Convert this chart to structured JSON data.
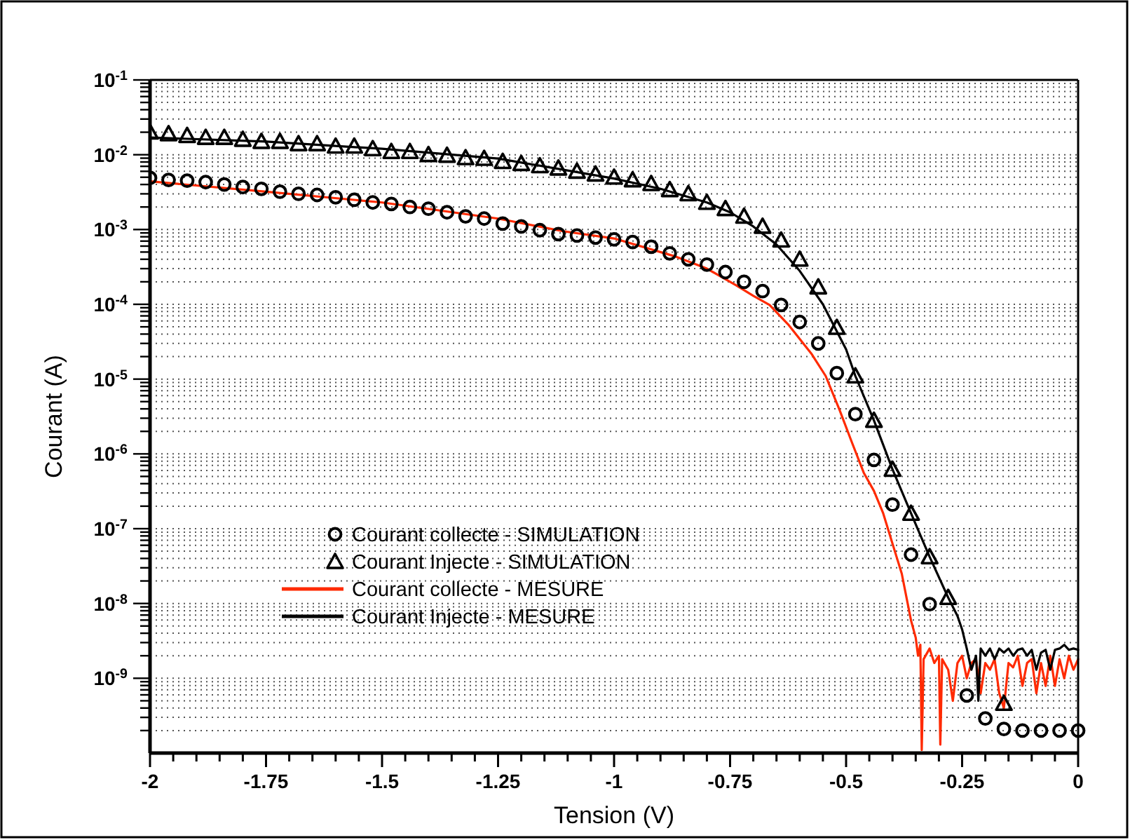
{
  "chart_data": {
    "type": "scatter",
    "xlabel": "Tension (V)",
    "ylabel": "Courant (A)",
    "log": "y",
    "grid": "y",
    "legend": "bottom left",
    "xlim": [
      -2,
      0
    ],
    "ylim": [
      1e-10,
      0.1
    ],
    "xticks": [
      -2,
      {
        "value": -1.95,
        "label": null
      },
      {
        "value": -1.9,
        "label": null
      },
      {
        "value": -1.85,
        "label": null
      },
      {
        "value": -1.8,
        "label": null
      },
      -1.75,
      {
        "value": -1.7,
        "label": null
      },
      {
        "value": -1.65,
        "label": null
      },
      {
        "value": -1.6,
        "label": null
      },
      {
        "value": -1.55,
        "label": null
      },
      -1.5,
      {
        "value": -1.45,
        "label": null
      },
      {
        "value": -1.4,
        "label": null
      },
      {
        "value": -1.35,
        "label": null
      },
      {
        "value": -1.3,
        "label": null
      },
      -1.25,
      {
        "value": -1.2,
        "label": null
      },
      {
        "value": -1.15,
        "label": null
      },
      {
        "value": -1.1,
        "label": null
      },
      {
        "value": -1.05,
        "label": null
      },
      -1,
      {
        "value": -0.95,
        "label": null
      },
      {
        "value": -0.9,
        "label": null
      },
      {
        "value": -0.85,
        "label": null
      },
      {
        "value": -0.8,
        "label": null
      },
      -0.75,
      {
        "value": -0.7,
        "label": null
      },
      {
        "value": -0.65,
        "label": null
      },
      {
        "value": -0.6,
        "label": null
      },
      {
        "value": -0.55,
        "label": null
      },
      -0.5,
      {
        "value": -0.45,
        "label": null
      },
      {
        "value": -0.4,
        "label": null
      },
      {
        "value": -0.35,
        "label": null
      },
      {
        "value": -0.3,
        "label": null
      },
      -0.25,
      {
        "value": -0.2,
        "label": null
      },
      {
        "value": -0.15,
        "label": null
      },
      {
        "value": -0.1,
        "label": null
      },
      {
        "value": -0.05,
        "label": null
      },
      0
    ],
    "yticks": [
      {
        "value": 0.1,
        "label": "10$^{-1}$"
      },
      {
        "value": 0.09,
        "label": null
      },
      {
        "value": 0.08,
        "label": null
      },
      {
        "value": 0.07,
        "label": null
      },
      {
        "value": 0.06,
        "label": null
      },
      {
        "value": 0.05,
        "label": null
      },
      {
        "value": 0.04,
        "label": null
      },
      {
        "value": 0.03,
        "label": null
      },
      {
        "value": 0.02,
        "label": null
      },
      {
        "value": 0.01,
        "label": "10$^{-2}$"
      },
      {
        "value": 0.009,
        "label": null
      },
      {
        "value": 0.008,
        "label": null
      },
      {
        "value": 0.007,
        "label": null
      },
      {
        "value": 0.006,
        "label": null
      },
      {
        "value": 0.005,
        "label": null
      },
      {
        "value": 0.004,
        "label": null
      },
      {
        "value": 0.003,
        "label": null
      },
      {
        "value": 0.002,
        "label": null
      },
      {
        "value": 0.001,
        "label": "10$^{-3}$"
      },
      {
        "value": 0.0009,
        "label": null
      },
      {
        "value": 0.0008,
        "label": null
      },
      {
        "value": 0.0007,
        "label": null
      },
      {
        "value": 0.0006,
        "label": null
      },
      {
        "value": 0.0005,
        "label": null
      },
      {
        "value": 0.0004,
        "label": null
      },
      {
        "value": 0.0003,
        "label": null
      },
      {
        "value": 0.0002,
        "label": null
      },
      {
        "value": 0.0001,
        "label": "10$^{-4}$"
      },
      {
        "value": 9e-05,
        "label": null
      },
      {
        "value": 8e-05,
        "label": null
      },
      {
        "value": 7e-05,
        "label": null
      },
      {
        "value": 6e-05,
        "label": null
      },
      {
        "value": 5e-05,
        "label": null
      },
      {
        "value": 4e-05,
        "label": null
      },
      {
        "value": 3e-05,
        "label": null
      },
      {
        "value": 2e-05,
        "label": null
      },
      {
        "value": 1e-05,
        "label": "10$^{-5}$"
      },
      {
        "value": 9e-06,
        "label": null
      },
      {
        "value": 8e-06,
        "label": null
      },
      {
        "value": 7e-06,
        "label": null
      },
      {
        "value": 6e-06,
        "label": null
      },
      {
        "value": 5e-06,
        "label": null
      },
      {
        "value": 4e-06,
        "label": null
      },
      {
        "value": 3e-06,
        "label": null
      },
      {
        "value": 2e-06,
        "label": null
      },
      {
        "value": 1e-06,
        "label": "10$^{-6}$"
      },
      {
        "value": 9e-07,
        "label": null
      },
      {
        "value": 8e-07,
        "label": null
      },
      {
        "value": 7e-07,
        "label": null
      },
      {
        "value": 6e-07,
        "label": null
      },
      {
        "value": 5e-07,
        "label": null
      },
      {
        "value": 4e-07,
        "label": null
      },
      {
        "value": 3e-07,
        "label": null
      },
      {
        "value": 2e-07,
        "label": null
      },
      {
        "value": 1e-07,
        "label": "10$^{-7}$"
      },
      {
        "value": 9e-08,
        "label": null
      },
      {
        "value": 8e-08,
        "label": null
      },
      {
        "value": 7e-08,
        "label": null
      },
      {
        "value": 6e-08,
        "label": null
      },
      {
        "value": 5e-08,
        "label": null
      },
      {
        "value": 4e-08,
        "label": null
      },
      {
        "value": 3e-08,
        "label": null
      },
      {
        "value": 2e-08,
        "label": null
      },
      {
        "value": 1e-08,
        "label": "10$^{-8}$"
      },
      {
        "value": 9e-09,
        "label": null
      },
      {
        "value": 8e-09,
        "label": null
      },
      {
        "value": 7e-09,
        "label": null
      },
      {
        "value": 6e-09,
        "label": null
      },
      {
        "value": 5e-09,
        "label": null
      },
      {
        "value": 4e-09,
        "label": null
      },
      {
        "value": 3e-09,
        "label": null
      },
      {
        "value": 2e-09,
        "label": null
      },
      {
        "value": 1e-09,
        "label": "10$^{-9}$"
      },
      {
        "value": 9e-10,
        "label": null
      },
      {
        "value": 8e-10,
        "label": null
      },
      {
        "value": 7e-10,
        "label": null
      },
      {
        "value": 6e-10,
        "label": null
      },
      {
        "value": 5e-10,
        "label": null
      },
      {
        "value": 4e-10,
        "label": null
      },
      {
        "value": 3e-10,
        "label": null
      },
      {
        "value": 2e-10,
        "label": null
      }
    ],
    "series": [
      {
        "name": "Courant collecte - SIMULATION",
        "marker": "circle",
        "color": "#000000",
        "x": [
          -2,
          -1.96,
          -1.92,
          -1.88,
          -1.84,
          -1.8,
          -1.76,
          -1.72,
          -1.68,
          -1.64,
          -1.6,
          -1.56,
          -1.52,
          -1.48,
          -1.44,
          -1.4,
          -1.36,
          -1.32,
          -1.28,
          -1.24,
          -1.2,
          -1.16,
          -1.12,
          -1.08,
          -1.04,
          -1,
          -0.96,
          -0.92,
          -0.88,
          -0.84,
          -0.8,
          -0.76,
          -0.72,
          -0.68,
          -0.64,
          -0.6,
          -0.56,
          -0.52,
          -0.48,
          -0.44,
          -0.4,
          -0.36,
          -0.32,
          -0.28,
          -0.24,
          -0.2,
          -0.16,
          -0.12,
          -0.08,
          -0.04,
          0
        ],
        "values": [
          0.0049,
          0.0046,
          0.0045,
          0.0043,
          0.004,
          0.0037,
          0.0035,
          0.0032,
          0.003,
          0.0029,
          0.0027,
          0.0025,
          0.0023,
          0.0022,
          0.002,
          0.0019,
          0.0017,
          0.0015,
          0.0014,
          0.0012,
          0.0011,
          0.00098,
          0.00087,
          0.00083,
          0.00078,
          0.00074,
          0.00068,
          0.00059,
          0.00048,
          0.0004,
          0.00034,
          0.00027,
          0.0002,
          0.00015,
          9.8e-05,
          5.8e-05,
          3e-05,
          1.2e-05,
          3.4e-06,
          8.3e-07,
          2.1e-07,
          4.5e-08,
          9.8e-09,
          null,
          5.9e-10,
          2.9e-10,
          2.1e-10,
          2e-10,
          2e-10,
          2e-10,
          2e-10
        ]
      },
      {
        "name": "Courant Injecte - SIMULATION",
        "marker": "triangle",
        "color": "#000000",
        "x": [
          -2,
          -1.96,
          -1.92,
          -1.88,
          -1.84,
          -1.8,
          -1.76,
          -1.72,
          -1.68,
          -1.64,
          -1.6,
          -1.56,
          -1.52,
          -1.48,
          -1.44,
          -1.4,
          -1.36,
          -1.32,
          -1.28,
          -1.24,
          -1.2,
          -1.16,
          -1.12,
          -1.08,
          -1.04,
          -1,
          -0.96,
          -0.92,
          -0.88,
          -0.84,
          -0.8,
          -0.76,
          -0.72,
          -0.68,
          -0.64,
          -0.6,
          -0.56,
          -0.52,
          -0.48,
          -0.44,
          -0.4,
          -0.36,
          -0.32,
          -0.28,
          -0.16
        ],
        "values": [
          0.02,
          0.019,
          0.018,
          0.017,
          0.017,
          0.016,
          0.015,
          0.015,
          0.014,
          0.014,
          0.013,
          0.013,
          0.012,
          0.011,
          0.011,
          0.01,
          0.0098,
          0.0091,
          0.0089,
          0.0081,
          0.0076,
          0.0071,
          0.0066,
          0.006,
          0.0055,
          0.005,
          0.0046,
          0.0041,
          0.0034,
          0.003,
          0.0023,
          0.0019,
          0.0015,
          0.0011,
          0.00072,
          0.0004,
          0.00017,
          4.9e-05,
          1.1e-05,
          2.8e-06,
          6.2e-07,
          1.6e-07,
          4.2e-08,
          1.2e-08,
          4.6e-10
        ]
      },
      {
        "name": "Courant collecte - MESURE",
        "type": "line",
        "marker": "none",
        "color": "#ff2a00",
        "x": [
          -2,
          -1.75,
          -1.5,
          -1.25,
          -1.11,
          -1,
          -0.87,
          -0.8,
          -0.737,
          -0.7,
          -0.665,
          -0.625,
          -0.575,
          -0.544,
          -0.515,
          -0.487,
          -0.462,
          -0.44,
          -0.42,
          -0.4,
          -0.38,
          -0.36,
          -0.35,
          -0.345,
          -0.34,
          -0.337,
          -0.333,
          -0.32,
          -0.31,
          -0.3,
          -0.297,
          -0.293,
          -0.28,
          -0.27,
          -0.26,
          -0.25,
          -0.24,
          -0.23,
          -0.22,
          -0.21,
          -0.2,
          -0.19,
          -0.18,
          -0.17,
          -0.16,
          -0.15,
          -0.14,
          -0.13,
          -0.12,
          -0.11,
          -0.1,
          -0.09,
          -0.08,
          -0.07,
          -0.06,
          -0.05,
          -0.04,
          -0.03,
          -0.02,
          -0.01,
          0
        ],
        "values": [
          0.0044,
          0.0032,
          0.0023,
          0.0014,
          0.00095,
          0.00076,
          0.00044,
          0.0003,
          0.00018,
          0.00013,
          9.8e-05,
          5.4e-05,
          2.2e-05,
          1.1e-05,
          4e-06,
          1.4e-06,
          5.6e-07,
          3.2e-07,
          1.6e-07,
          6.3e-08,
          2.5e-08,
          5.9e-09,
          3.5e-09,
          2e-09,
          2.8e-09,
          1.1e-10,
          1.8e-09,
          2.5e-09,
          1.6e-09,
          2e-09,
          1.3e-10,
          1.8e-09,
          1.3e-09,
          5e-10,
          1.6e-09,
          2e-09,
          1e-09,
          1.6e-09,
          1.8e-09,
          6.3e-10,
          1.6e-09,
          1.3e-09,
          1.8e-09,
          6.3e-10,
          4e-10,
          1.6e-09,
          1.4e-09,
          2e-09,
          7.9e-10,
          1.6e-09,
          1.8e-09,
          6.3e-10,
          1.6e-09,
          7.9e-10,
          2e-09,
          7.9e-10,
          1.8e-09,
          1e-09,
          2e-09,
          1.3e-09,
          1.8e-09
        ]
      },
      {
        "name": "Courant Injecte - MESURE",
        "type": "line",
        "marker": "none",
        "color": "#000000",
        "x": [
          -2,
          -1.75,
          -1.5,
          -1.25,
          -1,
          -0.9,
          -0.8,
          -0.75,
          -0.7,
          -0.65,
          -0.6,
          -0.55,
          -0.5,
          -0.48,
          -0.44,
          -0.4,
          -0.36,
          -0.32,
          -0.28,
          -0.26,
          -0.25,
          -0.24,
          -0.23,
          -0.22,
          -0.215,
          -0.21,
          -0.2,
          -0.19,
          -0.18,
          -0.17,
          -0.16,
          -0.15,
          -0.14,
          -0.13,
          -0.12,
          -0.11,
          -0.1,
          -0.09,
          -0.08,
          -0.07,
          -0.06,
          -0.05,
          -0.04,
          -0.03,
          -0.02,
          -0.01,
          0
        ],
        "values": [
          0.017,
          0.015,
          0.012,
          0.0089,
          0.0048,
          0.0035,
          0.0023,
          0.0017,
          0.0011,
          0.00063,
          0.00028,
          0.0001,
          2.5e-05,
          1.1e-05,
          2.8e-06,
          6.2e-07,
          1.6e-07,
          4.2e-08,
          1.2e-08,
          6.8e-09,
          4.5e-09,
          2.5e-09,
          1.3e-09,
          2e-09,
          5e-10,
          2.5e-09,
          2e-09,
          2.5e-09,
          1.8e-09,
          2.5e-09,
          2.2e-09,
          2.5e-09,
          2e-09,
          2.4e-09,
          2.5e-09,
          2e-09,
          2.4e-09,
          1.3e-09,
          2.2e-09,
          2.4e-09,
          1.3e-09,
          2.4e-09,
          2.5e-09,
          2.8e-09,
          2.4e-09,
          2.5e-09,
          2.4e-09
        ]
      }
    ]
  }
}
